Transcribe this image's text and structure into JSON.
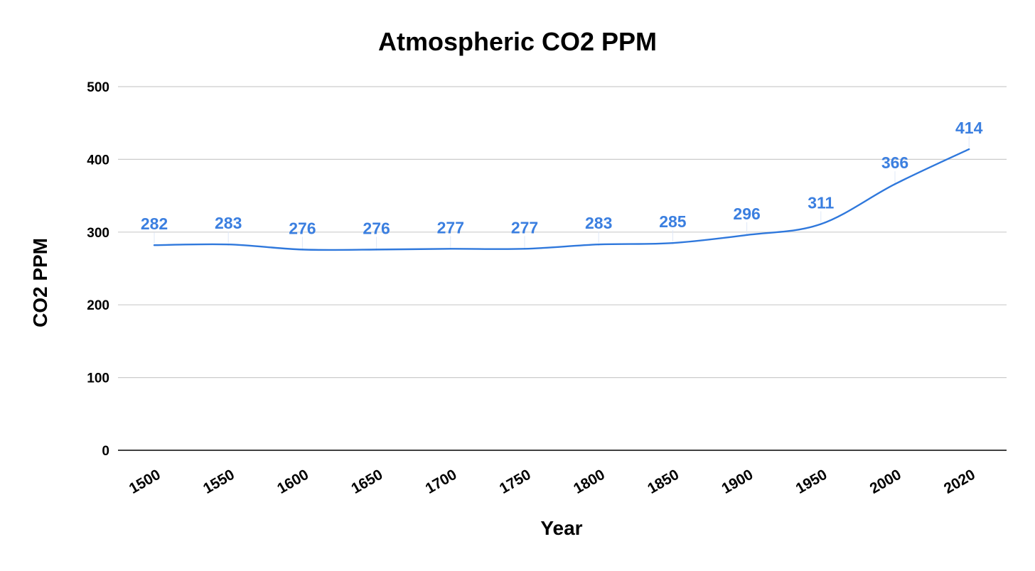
{
  "chart_data": {
    "type": "line",
    "title": "Atmospheric CO2 PPM",
    "xlabel": "Year",
    "ylabel": "CO2 PPM",
    "categories": [
      "1500",
      "1550",
      "1600",
      "1650",
      "1700",
      "1750",
      "1800",
      "1850",
      "1900",
      "1950",
      "2000",
      "2020"
    ],
    "series": [
      {
        "name": "CO2 PPM",
        "values": [
          282,
          283,
          276,
          276,
          277,
          277,
          283,
          285,
          296,
          311,
          366,
          414
        ]
      }
    ],
    "ylim": [
      0,
      500
    ],
    "yticks": [
      0,
      100,
      200,
      300,
      400,
      500
    ],
    "grid": true,
    "smooth": true,
    "data_labels": true,
    "line_color": "#2f78dc",
    "label_color": "#3b7fe0",
    "grid_color": "#cccccc",
    "axis_color": "#000000"
  }
}
